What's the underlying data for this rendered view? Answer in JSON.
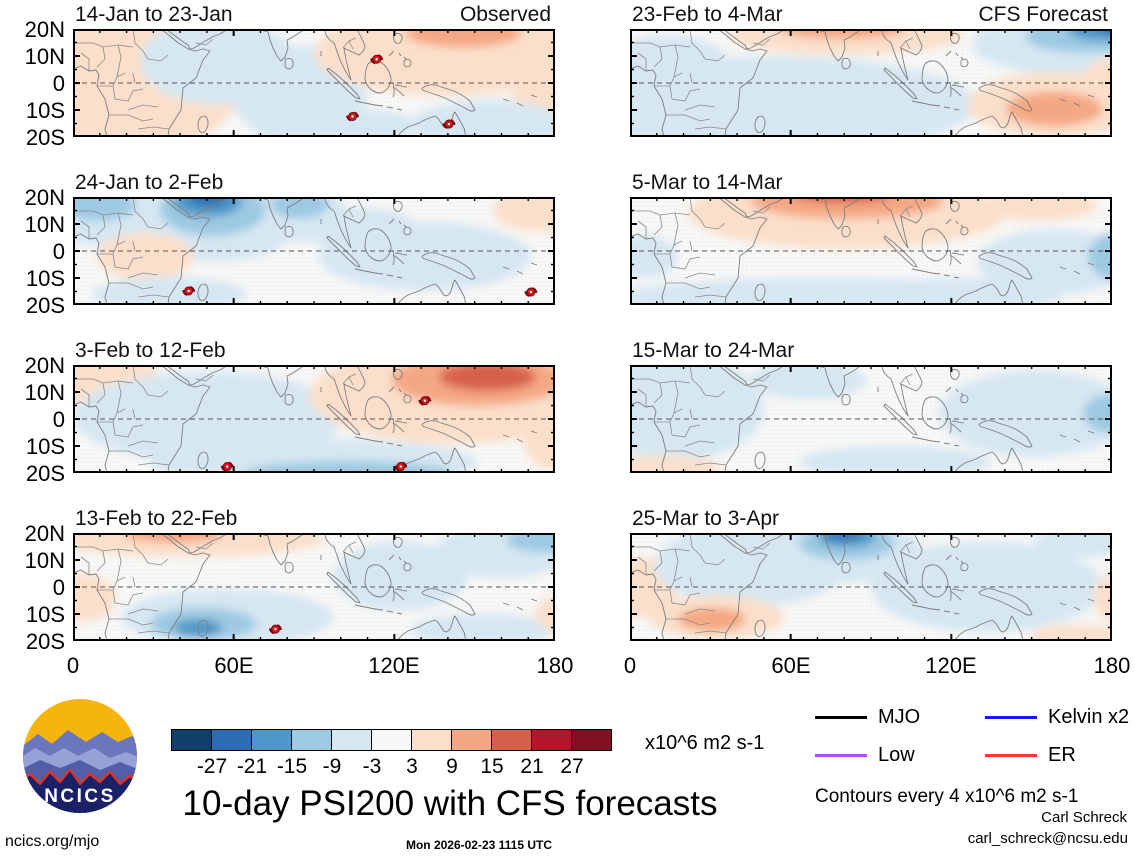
{
  "title": "10-day PSI200 with CFS forecasts",
  "logo": {
    "text": "NCICS"
  },
  "footer": {
    "site": "ncics.org/mjo",
    "timestamp": "Mon 2026-02-23 1115 UTC",
    "author": "Carl Schreck",
    "email": "carl_schreck@ncsu.edu"
  },
  "legend": {
    "note": "Contours every 4 x10^6 m2 s-1",
    "items": [
      {
        "label": "MJO",
        "color": "#000000"
      },
      {
        "label": "Kelvin x2",
        "color": "#1515ff"
      },
      {
        "label": "Low",
        "color": "#b04cf2"
      },
      {
        "label": "ER",
        "color": "#fa3a28"
      }
    ]
  },
  "colorbar": {
    "units": "x10^6 m2 s-1",
    "tick_labels": [
      "-27",
      "-21",
      "-15",
      "-9",
      "-3",
      "3",
      "9",
      "15",
      "21",
      "27"
    ],
    "colors": [
      "#11406e",
      "#2e6db4",
      "#4e97c8",
      "#9dc9e2",
      "#d6e7f2",
      "#f7f7f6",
      "#fbdfca",
      "#f4a783",
      "#d6604d",
      "#b2182b",
      "#7f1123"
    ]
  },
  "axes": {
    "y_tick_labels": [
      "20N",
      "10N",
      "0",
      "10S",
      "20S"
    ],
    "x_tick_labels": [
      "0",
      "60E",
      "120E",
      "180"
    ]
  },
  "chart_data": {
    "type": "heatmap",
    "subtype": "filled-contour lat-lon map grid",
    "description": "10-day mean 200-hPa streamfunction (PSI200) anomalies, observed and CFS forecast",
    "layout": {
      "rows": 4,
      "cols": 2,
      "left_column": "Observed",
      "right_column": "CFS Forecast"
    },
    "lon_range_deg": [
      0,
      180
    ],
    "lat_range_deg": [
      -20,
      20
    ],
    "x_tick_labels": [
      "0",
      "60E",
      "120E",
      "180"
    ],
    "y_tick_labels": [
      "20N",
      "10N",
      "0",
      "10S",
      "20S"
    ],
    "units": "x10^6 m2 s-1",
    "contour_interval": 4,
    "colorbar_levels": [
      -27,
      -21,
      -15,
      -9,
      -3,
      3,
      9,
      15,
      21,
      27
    ],
    "palette": [
      "#11406e",
      "#2e6db4",
      "#4e97c8",
      "#9dc9e2",
      "#d6e7f2",
      "#f7f7f6",
      "#fbdfca",
      "#f4a783",
      "#d6604d",
      "#b2182b",
      "#7f1123"
    ],
    "palette_note": "index 0..10 from -27 (dark blue) to +27 (dark red), 5 = neutral white",
    "panels": [
      {
        "title": "14-Jan to 23-Jan",
        "corner": "Observed",
        "col": 0,
        "row": 0,
        "features": [
          [
            6,
            45,
            30,
            75,
            6
          ],
          [
            30,
            30,
            16,
            40,
            4
          ],
          [
            47,
            60,
            14,
            45,
            4
          ],
          [
            78,
            22,
            28,
            40,
            6
          ],
          [
            81,
            4,
            12,
            13,
            7
          ],
          [
            99,
            55,
            8,
            35,
            6
          ],
          [
            86,
            88,
            16,
            22,
            4
          ],
          [
            60,
            90,
            12,
            15,
            4
          ]
        ],
        "cyclones": [
          [
            63,
            28
          ],
          [
            58,
            81
          ],
          [
            78,
            88
          ]
        ]
      },
      {
        "title": "23-Feb to 4-Mar",
        "corner": "CFS Forecast",
        "col": 1,
        "row": 0,
        "features": [
          [
            30,
            70,
            42,
            45,
            4
          ],
          [
            8,
            28,
            12,
            22,
            4
          ],
          [
            45,
            6,
            24,
            18,
            6
          ],
          [
            44,
            0,
            13,
            9,
            7
          ],
          [
            91,
            14,
            20,
            28,
            4
          ],
          [
            95,
            7,
            13,
            15,
            3
          ],
          [
            99,
            2,
            8,
            9,
            2
          ],
          [
            101,
            -1,
            4,
            5,
            1
          ],
          [
            88,
            70,
            18,
            30,
            6
          ],
          [
            88,
            74,
            10,
            16,
            7
          ],
          [
            100,
            45,
            6,
            18,
            6
          ]
        ],
        "cyclones": []
      },
      {
        "title": "24-Jan to 2-Feb",
        "corner": "",
        "col": 0,
        "row": 1,
        "features": [
          [
            7,
            18,
            13,
            28,
            4
          ],
          [
            5,
            8,
            8,
            14,
            3
          ],
          [
            30,
            22,
            17,
            38,
            4
          ],
          [
            29,
            12,
            11,
            24,
            3
          ],
          [
            28,
            5,
            7,
            13,
            2
          ],
          [
            28,
            1,
            4,
            7,
            1
          ],
          [
            47,
            16,
            10,
            26,
            4
          ],
          [
            47,
            7,
            6,
            13,
            3
          ],
          [
            15,
            55,
            10,
            22,
            6
          ],
          [
            20,
            90,
            16,
            16,
            4
          ],
          [
            73,
            55,
            22,
            32,
            4
          ],
          [
            97,
            12,
            10,
            20,
            6
          ],
          [
            60,
            30,
            12,
            20,
            4
          ]
        ],
        "cyclones": [
          [
            24,
            87
          ],
          [
            95,
            88
          ]
        ]
      },
      {
        "title": "5-Mar to 14-Mar",
        "corner": "",
        "col": 1,
        "row": 1,
        "features": [
          [
            45,
            15,
            33,
            33,
            6
          ],
          [
            45,
            4,
            20,
            16,
            7
          ],
          [
            44,
            -2,
            10,
            7,
            8
          ],
          [
            85,
            8,
            12,
            14,
            6
          ],
          [
            40,
            95,
            45,
            20,
            4
          ],
          [
            88,
            60,
            16,
            30,
            4
          ],
          [
            101,
            55,
            6,
            22,
            3
          ],
          [
            3,
            55,
            7,
            20,
            4
          ],
          [
            70,
            90,
            20,
            15,
            4
          ]
        ],
        "cyclones": []
      },
      {
        "title": "3-Feb to 12-Feb",
        "corner": "",
        "col": 0,
        "row": 2,
        "features": [
          [
            4,
            12,
            14,
            24,
            6
          ],
          [
            28,
            48,
            28,
            42,
            4
          ],
          [
            79,
            28,
            30,
            45,
            6
          ],
          [
            84,
            14,
            18,
            24,
            7
          ],
          [
            86,
            11,
            10,
            13,
            8
          ],
          [
            100,
            60,
            7,
            38,
            6
          ],
          [
            50,
            90,
            34,
            22,
            4
          ],
          [
            57,
            101,
            22,
            12,
            3
          ]
        ],
        "cyclones": [
          [
            73,
            33
          ],
          [
            32,
            94
          ],
          [
            68,
            94
          ]
        ]
      },
      {
        "title": "15-Mar to 24-Mar",
        "corner": "",
        "col": 1,
        "row": 2,
        "features": [
          [
            10,
            40,
            18,
            48,
            4
          ],
          [
            37,
            14,
            12,
            18,
            4
          ],
          [
            84,
            45,
            20,
            40,
            4
          ],
          [
            100,
            45,
            6,
            18,
            3
          ],
          [
            7,
            96,
            12,
            12,
            6
          ],
          [
            55,
            90,
            20,
            15,
            4
          ]
        ],
        "cyclones": []
      },
      {
        "title": "13-Feb to 22-Feb",
        "corner": "",
        "col": 0,
        "row": 3,
        "features": [
          [
            24,
            6,
            28,
            16,
            6
          ],
          [
            21,
            1,
            10,
            8,
            7
          ],
          [
            2,
            60,
            7,
            22,
            6
          ],
          [
            32,
            78,
            22,
            26,
            4
          ],
          [
            27,
            84,
            11,
            15,
            3
          ],
          [
            26,
            88,
            5,
            8,
            2
          ],
          [
            68,
            40,
            14,
            32,
            4
          ],
          [
            89,
            18,
            14,
            24,
            4
          ],
          [
            98,
            6,
            8,
            12,
            3
          ],
          [
            85,
            90,
            15,
            15,
            4
          ],
          [
            101,
            75,
            5,
            18,
            6
          ]
        ],
        "cyclones": [
          [
            42,
            89
          ]
        ]
      },
      {
        "title": "25-Mar to 3-Apr",
        "corner": "",
        "col": 1,
        "row": 3,
        "features": [
          [
            2,
            50,
            8,
            28,
            6
          ],
          [
            25,
            30,
            20,
            38,
            4
          ],
          [
            45,
            18,
            16,
            28,
            4
          ],
          [
            45,
            9,
            10,
            16,
            3
          ],
          [
            45,
            4,
            6,
            9,
            2
          ],
          [
            44,
            1,
            4,
            5,
            1
          ],
          [
            18,
            78,
            14,
            20,
            6
          ],
          [
            17,
            80,
            7,
            11,
            7
          ],
          [
            74,
            50,
            24,
            42,
            4
          ],
          [
            93,
            95,
            10,
            10,
            6
          ],
          [
            101,
            60,
            5,
            22,
            6
          ],
          [
            94,
            8,
            10,
            14,
            4
          ]
        ],
        "cyclones": []
      }
    ]
  }
}
